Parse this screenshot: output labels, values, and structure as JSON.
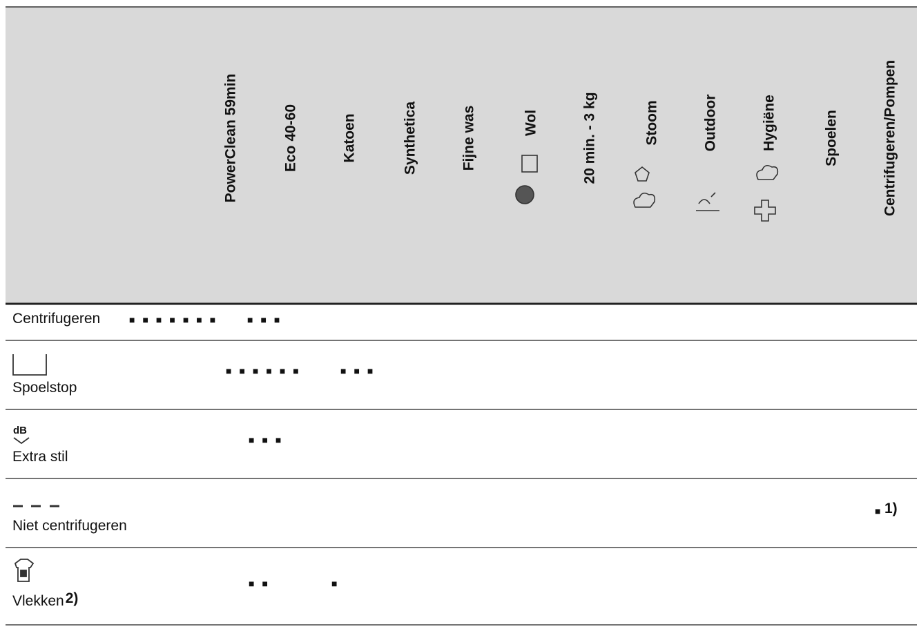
{
  "table": {
    "columns": [
      "PowerClean 59min",
      "Eco 40-60",
      "Katoen",
      "Synthetica",
      "Fijne was",
      "Wol",
      "20 min. - 3 kg",
      "Stoom",
      "Outdoor",
      "Hygiëne",
      "Spoelen",
      "Centrifugeren/Pompen"
    ],
    "rows": [
      {
        "label": "Centrifugeren",
        "marks": [
          "■■■■■■■",
          "■■■"
        ]
      },
      {
        "label": "Spoelstop",
        "marks": [
          "■■■■■■",
          "■■■"
        ]
      },
      {
        "label": "Extra stil",
        "marks": [
          "■■■"
        ]
      },
      {
        "label": "Niet centrifugeren",
        "marks": [
          "■"
        ],
        "mark_note": "1)"
      },
      {
        "label": "Vlekken",
        "note": "2)",
        "marks": [
          "■■",
          "■"
        ]
      }
    ]
  }
}
